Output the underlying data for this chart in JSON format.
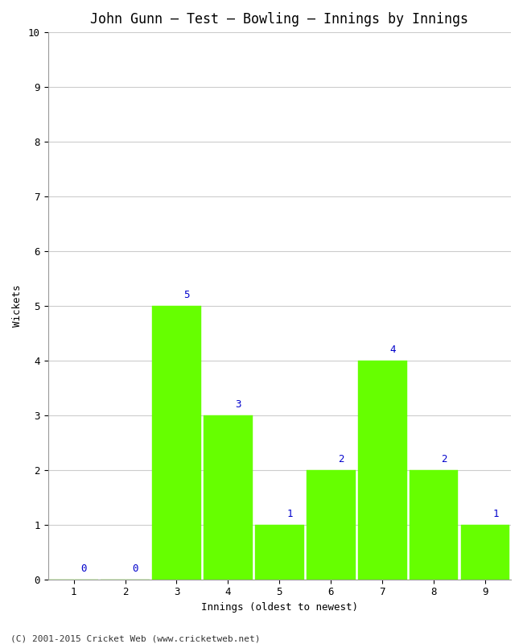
{
  "title": "John Gunn – Test – Bowling – Innings by Innings",
  "xlabel": "Innings (oldest to newest)",
  "ylabel": "Wickets",
  "categories": [
    "1",
    "2",
    "3",
    "4",
    "5",
    "6",
    "7",
    "8",
    "9"
  ],
  "values": [
    0,
    0,
    5,
    3,
    1,
    2,
    4,
    2,
    1
  ],
  "bar_color": "#66ff00",
  "bar_edge_color": "#66ff00",
  "ylim": [
    0,
    10
  ],
  "yticks": [
    0,
    1,
    2,
    3,
    4,
    5,
    6,
    7,
    8,
    9,
    10
  ],
  "grid_color": "#cccccc",
  "bg_color": "#ffffff",
  "label_color": "#0000cc",
  "label_fontsize": 9,
  "title_fontsize": 12,
  "axis_fontsize": 9,
  "footer": "(C) 2001-2015 Cricket Web (www.cricketweb.net)"
}
